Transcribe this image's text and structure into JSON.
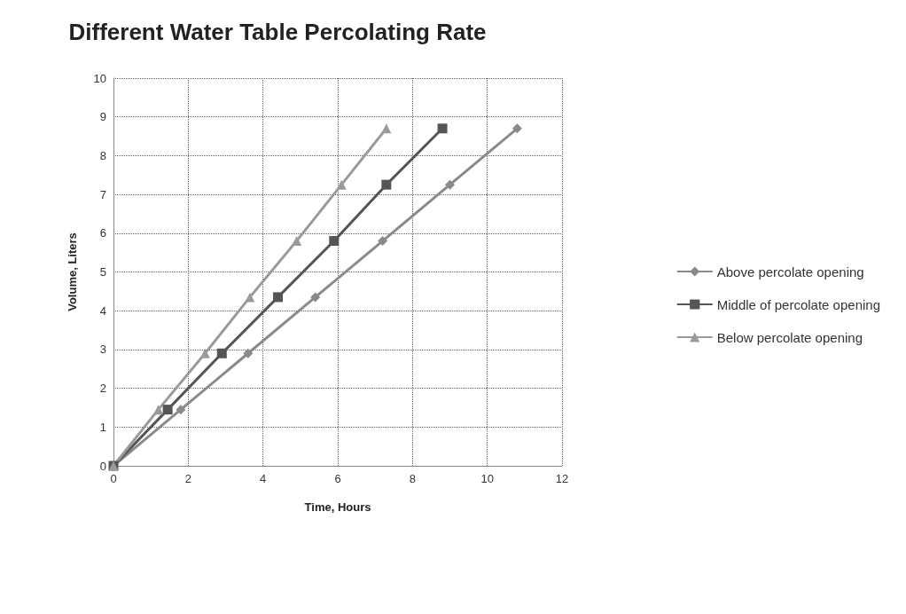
{
  "chart_data": {
    "type": "line",
    "title": "Different Water Table Percolating Rate",
    "xlabel": "Time, Hours",
    "ylabel": "Volume, Liters",
    "xlim": [
      0,
      12
    ],
    "xticks": [
      0,
      2,
      4,
      6,
      8,
      10,
      12
    ],
    "ylim": [
      0,
      10
    ],
    "yticks": [
      0,
      1,
      2,
      3,
      4,
      5,
      6,
      7,
      8,
      9,
      10
    ],
    "grid": true,
    "legend": "right",
    "series": [
      {
        "name": "Above percolate opening",
        "color": "#8a8a8a",
        "marker": "diamond",
        "x": [
          0,
          1.8,
          3.6,
          5.4,
          7.2,
          9.0,
          10.8
        ],
        "values": [
          0,
          1.45,
          2.9,
          4.35,
          5.8,
          7.25,
          8.7
        ]
      },
      {
        "name": "Middle of percolate opening",
        "color": "#555555",
        "marker": "square",
        "x": [
          0,
          1.45,
          2.9,
          4.4,
          5.9,
          7.3,
          8.8
        ],
        "values": [
          0,
          1.45,
          2.9,
          4.35,
          5.8,
          7.25,
          8.7
        ]
      },
      {
        "name": "Below percolate opening",
        "color": "#9a9a9a",
        "marker": "triangle",
        "x": [
          0,
          1.2,
          2.45,
          3.65,
          4.9,
          6.1,
          7.3
        ],
        "values": [
          0,
          1.45,
          2.9,
          4.35,
          5.8,
          7.25,
          8.7
        ]
      }
    ]
  }
}
